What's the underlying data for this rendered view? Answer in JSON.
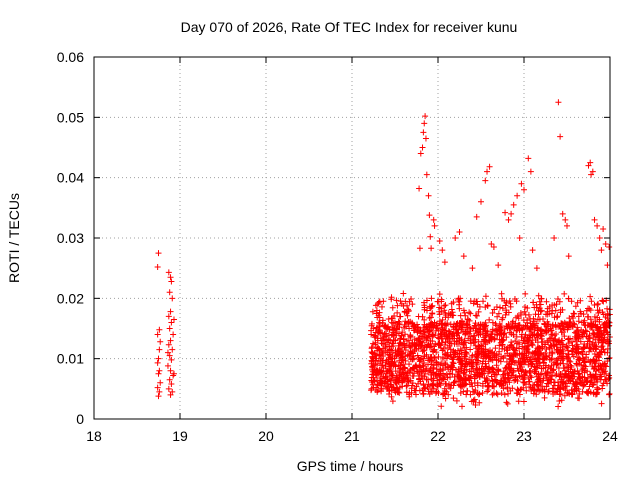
{
  "chart_data": {
    "type": "scatter",
    "title": "Day 070 of 2026, Rate Of TEC Index for receiver kunu",
    "xlabel": "GPS time / hours",
    "ylabel": "ROTI / TECUs",
    "xlim": [
      18,
      24
    ],
    "ylim": [
      0,
      0.06
    ],
    "xticks": [
      "18",
      "19",
      "20",
      "21",
      "22",
      "23",
      "24"
    ],
    "yticks": [
      "0",
      "0.01",
      "0.02",
      "0.03",
      "0.04",
      "0.05",
      "0.06"
    ],
    "grid": true,
    "marker": "+",
    "color": "#ff0000",
    "points": [
      [
        18.75,
        0.0275
      ],
      [
        18.74,
        0.0252
      ],
      [
        18.76,
        0.0148
      ],
      [
        18.74,
        0.014
      ],
      [
        18.77,
        0.0128
      ],
      [
        18.76,
        0.0115
      ],
      [
        18.75,
        0.01
      ],
      [
        18.74,
        0.0093
      ],
      [
        18.76,
        0.008
      ],
      [
        18.75,
        0.0075
      ],
      [
        18.77,
        0.006
      ],
      [
        18.74,
        0.0052
      ],
      [
        18.76,
        0.0045
      ],
      [
        18.75,
        0.0038
      ],
      [
        18.87,
        0.0243
      ],
      [
        18.89,
        0.0235
      ],
      [
        18.9,
        0.0228
      ],
      [
        18.88,
        0.021
      ],
      [
        18.91,
        0.02
      ],
      [
        18.89,
        0.0178
      ],
      [
        18.87,
        0.017
      ],
      [
        18.9,
        0.016
      ],
      [
        18.88,
        0.015
      ],
      [
        18.92,
        0.014
      ],
      [
        18.89,
        0.013
      ],
      [
        18.87,
        0.0123
      ],
      [
        18.91,
        0.0115
      ],
      [
        18.88,
        0.0105
      ],
      [
        18.9,
        0.0098
      ],
      [
        18.86,
        0.0088
      ],
      [
        18.89,
        0.008
      ],
      [
        18.92,
        0.0072
      ],
      [
        18.88,
        0.0065
      ],
      [
        18.9,
        0.0058
      ],
      [
        18.87,
        0.005
      ],
      [
        18.91,
        0.0045
      ],
      [
        18.89,
        0.004
      ],
      [
        18.93,
        0.0075
      ],
      [
        18.86,
        0.011
      ],
      [
        18.93,
        0.0165
      ],
      [
        21.85,
        0.0502
      ],
      [
        21.84,
        0.049
      ],
      [
        21.83,
        0.0475
      ],
      [
        21.86,
        0.0465
      ],
      [
        21.82,
        0.045
      ],
      [
        21.8,
        0.044
      ],
      [
        21.87,
        0.0405
      ],
      [
        21.78,
        0.0382
      ],
      [
        21.89,
        0.037
      ],
      [
        21.9,
        0.0338
      ],
      [
        21.91,
        0.0302
      ],
      [
        21.92,
        0.0283
      ],
      [
        21.79,
        0.0283
      ],
      [
        21.95,
        0.033
      ],
      [
        21.96,
        0.032
      ],
      [
        22.02,
        0.0295
      ],
      [
        22.05,
        0.028
      ],
      [
        22.08,
        0.026
      ],
      [
        22.2,
        0.03
      ],
      [
        22.25,
        0.031
      ],
      [
        22.3,
        0.027
      ],
      [
        22.4,
        0.025
      ],
      [
        22.45,
        0.0335
      ],
      [
        22.5,
        0.036
      ],
      [
        22.55,
        0.0395
      ],
      [
        22.57,
        0.041
      ],
      [
        22.6,
        0.0418
      ],
      [
        22.62,
        0.029
      ],
      [
        22.65,
        0.0285
      ],
      [
        22.7,
        0.0255
      ],
      [
        22.78,
        0.0342
      ],
      [
        22.82,
        0.033
      ],
      [
        22.85,
        0.034
      ],
      [
        22.88,
        0.0355
      ],
      [
        22.92,
        0.037
      ],
      [
        22.95,
        0.03
      ],
      [
        22.97,
        0.039
      ],
      [
        23.0,
        0.038
      ],
      [
        23.05,
        0.0432
      ],
      [
        23.08,
        0.041
      ],
      [
        23.1,
        0.028
      ],
      [
        23.15,
        0.025
      ],
      [
        23.35,
        0.03
      ],
      [
        23.4,
        0.0525
      ],
      [
        23.42,
        0.0468
      ],
      [
        23.45,
        0.034
      ],
      [
        23.48,
        0.033
      ],
      [
        23.5,
        0.032
      ],
      [
        23.52,
        0.027
      ],
      [
        23.75,
        0.042
      ],
      [
        23.77,
        0.0425
      ],
      [
        23.78,
        0.0405
      ],
      [
        23.8,
        0.041
      ],
      [
        23.82,
        0.033
      ],
      [
        23.85,
        0.032
      ],
      [
        23.88,
        0.03
      ],
      [
        23.9,
        0.028
      ],
      [
        23.92,
        0.0315
      ],
      [
        23.95,
        0.029
      ],
      [
        23.97,
        0.0255
      ],
      [
        23.99,
        0.0285
      ]
    ],
    "dense_band": {
      "x_start": 21.22,
      "x_end": 24.0,
      "y_min": 0.002,
      "y_max": 0.021,
      "count": 2400
    }
  }
}
